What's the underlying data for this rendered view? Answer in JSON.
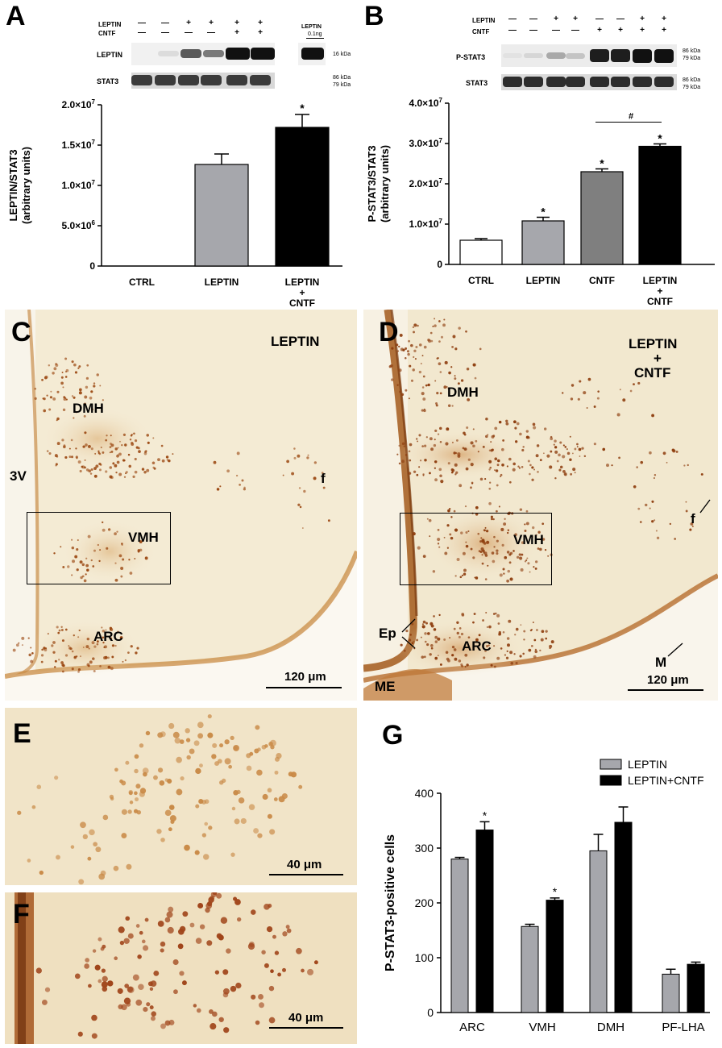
{
  "panels": {
    "a": "A",
    "b": "B",
    "c": "C",
    "d": "D",
    "e": "E",
    "f": "F",
    "g": "G"
  },
  "blot_a": {
    "row_labels": [
      "LEPTIN",
      "CNTF"
    ],
    "leptin_signs": [
      "—",
      "—",
      "+",
      "+",
      "+",
      "+"
    ],
    "cntf_signs": [
      "—",
      "—",
      "—",
      "—",
      "+",
      "+"
    ],
    "standard_label": "LEPTIN",
    "standard_amount": "0.1ng",
    "band_labels": [
      "LEPTIN",
      "STAT3"
    ],
    "kda_leptin": "16 kDa",
    "kda_stat3_1": "86 kDa",
    "kda_stat3_2": "79 kDa"
  },
  "blot_b": {
    "row_labels": [
      "LEPTIN",
      "CNTF"
    ],
    "leptin_signs": [
      "—",
      "—",
      "+",
      "+",
      "—",
      "—",
      "+",
      "+"
    ],
    "cntf_signs": [
      "—",
      "—",
      "—",
      "—",
      "+",
      "+",
      "+",
      "+"
    ],
    "band_labels": [
      "P-STAT3",
      "STAT3"
    ],
    "kda_1": "86 kDa",
    "kda_2": "79 kDa"
  },
  "micrographs": {
    "c": {
      "title": "LEPTIN",
      "labels": [
        "DMH",
        "3V",
        "f",
        "VMH",
        "ARC"
      ],
      "scale": "120 μm"
    },
    "d": {
      "title_1": "LEPTIN",
      "title_2": "+",
      "title_3": "CNTF",
      "labels": [
        "DMH",
        "f",
        "VMH",
        "Ep",
        "ARC",
        "M",
        "ME"
      ],
      "scale": "120 μm"
    },
    "e": {
      "scale": "40 μm"
    },
    "f": {
      "scale": "40 μm"
    }
  },
  "colors": {
    "white_bar": "#ffffff",
    "light_gray_bar": "#a6a7ac",
    "dark_gray_bar": "#7f7f7f",
    "black_bar": "#000000",
    "tissue": "#f3ead3",
    "stain": "#a0521d"
  },
  "chart_data": [
    {
      "panel": "A",
      "type": "bar",
      "categories": [
        "CTRL",
        "LEPTIN",
        "LEPTIN\n+\nCNTF"
      ],
      "values": [
        0,
        12600000,
        17200000
      ],
      "errors": [
        0,
        1300000,
        1600000
      ],
      "significance": [
        "",
        "",
        "*"
      ],
      "ylabel": "LEPTIN/STAT3\n(arbitrary units)",
      "yticks": [
        0,
        5000000,
        10000000,
        15000000,
        20000000
      ],
      "ytick_labels": [
        "0",
        "5.0×10^6",
        "1.0×10^7",
        "1.5×10^7",
        "2.0×10^7"
      ],
      "ylim": [
        0,
        20000000
      ],
      "bar_colors": [
        "#ffffff",
        "#a6a7ac",
        "#000000"
      ]
    },
    {
      "panel": "B",
      "type": "bar",
      "categories": [
        "CTRL",
        "LEPTIN",
        "CNTF",
        "LEPTIN\n+\nCNTF"
      ],
      "values": [
        6000000,
        10800000,
        23000000,
        29300000
      ],
      "errors": [
        400000,
        900000,
        700000,
        600000
      ],
      "significance": [
        "",
        "*",
        "*",
        "*"
      ],
      "comparison": {
        "from": 2,
        "to": 3,
        "mark": "#"
      },
      "ylabel": "P-STAT3/STAT3\n(arbitrary units)",
      "yticks": [
        0,
        10000000,
        20000000,
        30000000,
        40000000
      ],
      "ytick_labels": [
        "0",
        "1.0×10^7",
        "2.0×10^7",
        "3.0×10^7",
        "4.0×10^7"
      ],
      "ylim": [
        0,
        40000000
      ],
      "bar_colors": [
        "#ffffff",
        "#a6a7ac",
        "#7f7f7f",
        "#000000"
      ]
    },
    {
      "panel": "G",
      "type": "bar",
      "categories": [
        "ARC",
        "VMH",
        "DMH",
        "PF-LHA"
      ],
      "series": [
        {
          "name": "LEPTIN",
          "values": [
            280,
            157,
            295,
            70
          ],
          "errors": [
            3,
            4,
            30,
            9
          ],
          "significance": [
            "",
            "",
            "",
            ""
          ],
          "color": "#a6a7ac"
        },
        {
          "name": "LEPTIN+CNTF",
          "values": [
            333,
            205,
            347,
            88
          ],
          "errors": [
            15,
            4,
            28,
            4
          ],
          "significance": [
            "*",
            "*",
            "",
            ""
          ],
          "color": "#000000"
        }
      ],
      "ylabel": "P-STAT3-positive cells",
      "yticks": [
        0,
        100,
        200,
        300,
        400
      ],
      "ylim": [
        0,
        400
      ],
      "legend": "top-right"
    }
  ]
}
